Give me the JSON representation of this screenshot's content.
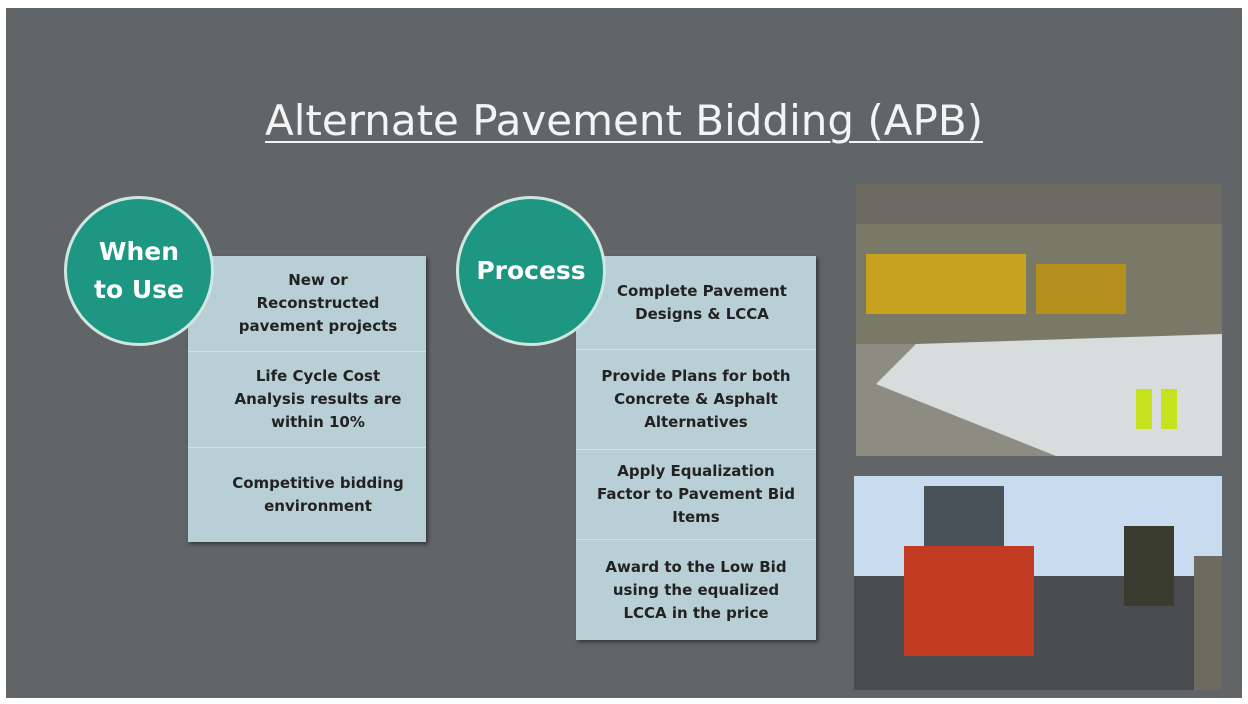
{
  "title": "Alternate Pavement Bidding (APB)",
  "when_to_use": {
    "heading": "When to Use",
    "items": [
      "New or Reconstructed pavement projects",
      "Life Cycle Cost Analysis results are within 10%",
      "Competitive bidding environment"
    ]
  },
  "process": {
    "heading": "Process",
    "items": [
      "Complete Pavement Designs & LCCA",
      "Provide Plans for both Concrete & Asphalt Alternatives",
      "Apply Equalization Factor to Pavement Bid Items",
      "Award to the Low Bid using the equalized LCCA in the price"
    ]
  }
}
